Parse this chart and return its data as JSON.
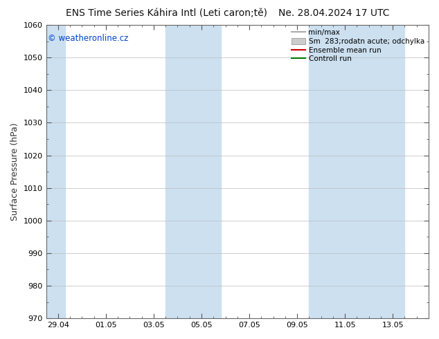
{
  "title_left": "ENS Time Series Káhira Intl (Leti caron;tě)",
  "title_right": "Ne. 28.04.2024 17 UTC",
  "ylabel": "Surface Pressure (hPa)",
  "ylim": [
    970,
    1060
  ],
  "yticks": [
    970,
    980,
    990,
    1000,
    1010,
    1020,
    1030,
    1040,
    1050,
    1060
  ],
  "xtick_labels": [
    "29.04",
    "01.05",
    "03.05",
    "05.05",
    "07.05",
    "09.05",
    "11.05",
    "13.05"
  ],
  "xtick_positions": [
    0,
    2,
    4,
    6,
    8,
    10,
    12,
    14
  ],
  "xlim_start": -0.5,
  "xlim_end": 15.5,
  "blue_bands": [
    {
      "xstart": -0.5,
      "xend": 0.3
    },
    {
      "xstart": 4.5,
      "xend": 6.8
    },
    {
      "xstart": 10.5,
      "xend": 14.5
    }
  ],
  "band_color": "#cce0f0",
  "watermark": "© weatheronline.cz",
  "watermark_color": "#0044cc",
  "legend_entries": [
    {
      "label": "min/max",
      "color": "#aaaaaa",
      "type": "line"
    },
    {
      "label": "Sm  283;rodatn acute; odchylka",
      "color": "#cccccc",
      "type": "fill"
    },
    {
      "label": "Ensemble mean run",
      "color": "#cc0000",
      "type": "line"
    },
    {
      "label": "Controll run",
      "color": "#007700",
      "type": "line"
    }
  ],
  "bg_color": "#ffffff",
  "grid_color": "#bbbbbb",
  "title_fontsize": 10,
  "tick_fontsize": 8,
  "ylabel_fontsize": 9
}
